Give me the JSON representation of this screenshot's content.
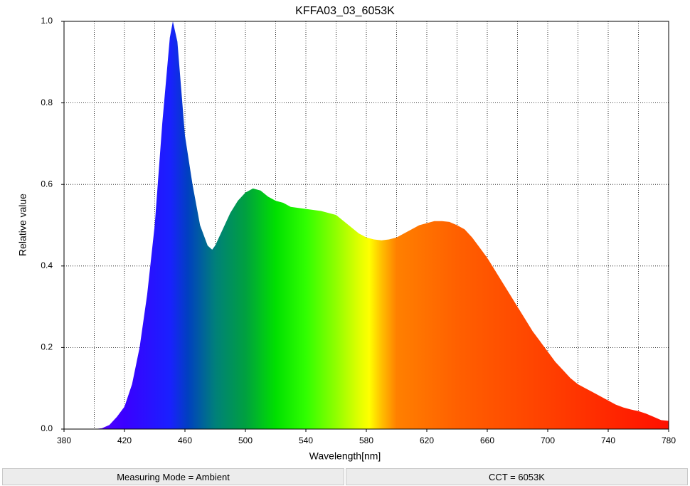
{
  "chart_data": {
    "type": "area",
    "title": "KFFA03_03_6053K",
    "xlabel": "Wavelength[nm]",
    "ylabel": "Relative value",
    "x": [
      380,
      385,
      390,
      395,
      400,
      405,
      410,
      415,
      420,
      425,
      430,
      435,
      440,
      445,
      450,
      452,
      455,
      460,
      465,
      470,
      475,
      478,
      480,
      485,
      490,
      495,
      500,
      505,
      510,
      515,
      520,
      525,
      530,
      540,
      550,
      560,
      565,
      570,
      575,
      580,
      585,
      590,
      595,
      600,
      605,
      610,
      615,
      620,
      625,
      630,
      635,
      640,
      645,
      650,
      655,
      660,
      665,
      670,
      675,
      680,
      685,
      690,
      695,
      700,
      705,
      710,
      715,
      720,
      725,
      730,
      735,
      740,
      745,
      750,
      755,
      760,
      765,
      770,
      775,
      780
    ],
    "values": [
      0,
      0,
      0,
      0,
      0,
      0.002,
      0.01,
      0.03,
      0.055,
      0.11,
      0.2,
      0.33,
      0.5,
      0.75,
      0.96,
      1.0,
      0.95,
      0.72,
      0.6,
      0.5,
      0.45,
      0.44,
      0.45,
      0.49,
      0.53,
      0.56,
      0.58,
      0.59,
      0.585,
      0.57,
      0.56,
      0.555,
      0.545,
      0.54,
      0.535,
      0.525,
      0.51,
      0.495,
      0.48,
      0.47,
      0.465,
      0.463,
      0.465,
      0.47,
      0.48,
      0.49,
      0.5,
      0.505,
      0.51,
      0.51,
      0.508,
      0.5,
      0.49,
      0.47,
      0.445,
      0.42,
      0.39,
      0.36,
      0.33,
      0.3,
      0.27,
      0.24,
      0.215,
      0.19,
      0.165,
      0.145,
      0.125,
      0.11,
      0.1,
      0.09,
      0.08,
      0.07,
      0.06,
      0.053,
      0.048,
      0.044,
      0.038,
      0.03,
      0.022,
      0.02
    ],
    "xlim": [
      380,
      780
    ],
    "ylim": [
      0,
      1
    ],
    "xticks": [
      380,
      420,
      460,
      500,
      540,
      580,
      620,
      660,
      700,
      740,
      780
    ],
    "xgrid": [
      400,
      420,
      440,
      460,
      480,
      500,
      520,
      540,
      560,
      580,
      600,
      620,
      640,
      660,
      680,
      700,
      720,
      740,
      760
    ],
    "yticks": [
      {
        "value": 0,
        "label": "0.0"
      },
      0.2,
      0.4,
      0.6,
      0.8,
      {
        "value": 1,
        "label": "1.0"
      }
    ],
    "grid": true,
    "fill_gradient": [
      {
        "wavelength": 380,
        "color": "#7a00ff"
      },
      {
        "wavelength": 420,
        "color": "#3a00ff"
      },
      {
        "wavelength": 450,
        "color": "#1a20ff"
      },
      {
        "wavelength": 462,
        "color": "#0040c0"
      },
      {
        "wavelength": 480,
        "color": "#00807a"
      },
      {
        "wavelength": 500,
        "color": "#00a040"
      },
      {
        "wavelength": 520,
        "color": "#00e000"
      },
      {
        "wavelength": 540,
        "color": "#30ff00"
      },
      {
        "wavelength": 560,
        "color": "#90ff00"
      },
      {
        "wavelength": 575,
        "color": "#e0ff00"
      },
      {
        "wavelength": 582,
        "color": "#ffff00"
      },
      {
        "wavelength": 590,
        "color": "#ffc000"
      },
      {
        "wavelength": 600,
        "color": "#ff8000"
      },
      {
        "wavelength": 640,
        "color": "#ff6000"
      },
      {
        "wavelength": 700,
        "color": "#ff4000"
      },
      {
        "wavelength": 780,
        "color": "#ff1000"
      }
    ]
  },
  "status_bar": [
    "Measuring Mode = Ambient",
    "CCT = 6053K"
  ]
}
